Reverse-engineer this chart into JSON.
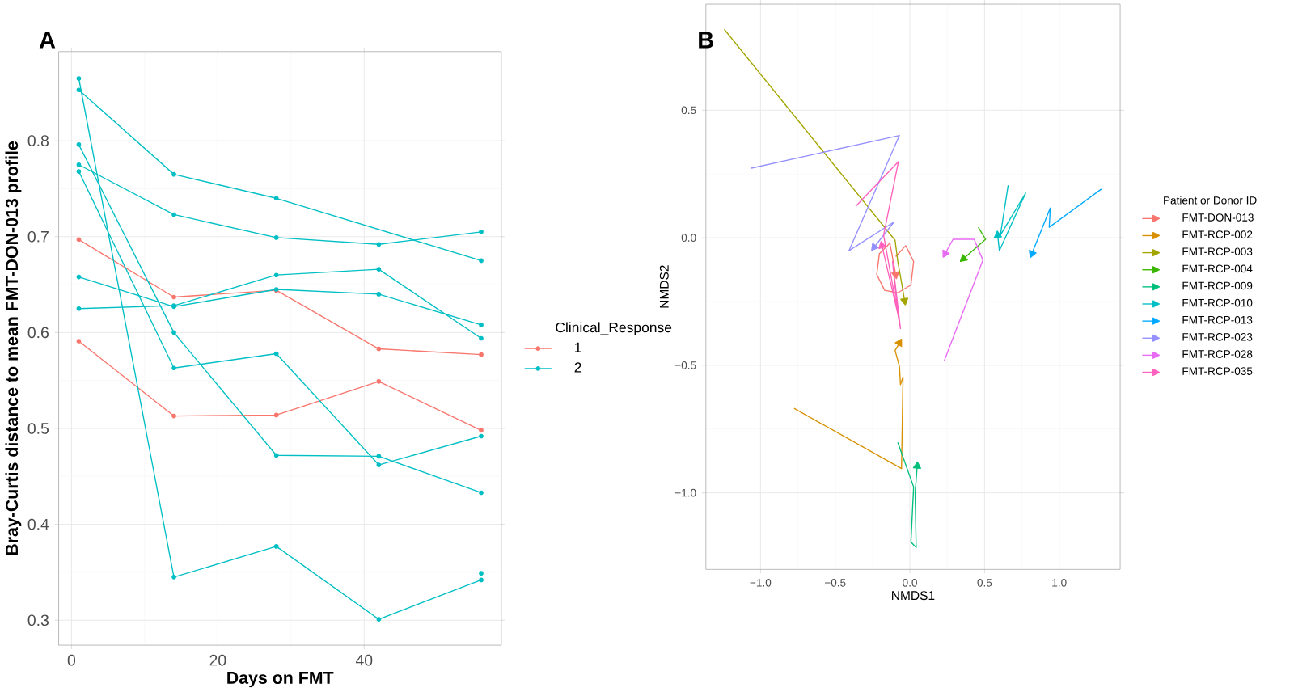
{
  "chart_data": [
    {
      "type": "line",
      "title": "A",
      "xlabel": "Days on FMT",
      "ylabel": "Bray-Curtis distance to mean FMT-DON-013 profile",
      "legend_title": "Clinical_Response",
      "legend": "right",
      "grid": true,
      "marker": "circle",
      "xlim": [
        -1.75,
        58.75
      ],
      "ylim": [
        0.274,
        0.893
      ],
      "xticks": [
        0,
        20,
        40
      ],
      "yticks": [
        0.3,
        0.4,
        0.5,
        0.6,
        0.7,
        0.8
      ],
      "x": [
        1,
        14,
        28,
        42,
        56
      ],
      "series": [
        {
          "name": "1",
          "color": "#f8766d",
          "values": [
            0.697,
            0.637,
            0.644,
            0.583,
            0.577
          ]
        },
        {
          "color": "#f8766d",
          "values": [
            0.591,
            0.513,
            0.514,
            0.549,
            0.498
          ]
        },
        {
          "name": "2",
          "color": "#00bfc4",
          "values": [
            0.865,
            0.345,
            0.377,
            0.301,
            0.342
          ]
        },
        {
          "color": "#00bfc4",
          "x": [
            1,
            14,
            28,
            56
          ],
          "values": [
            0.853,
            0.765,
            0.74,
            0.675
          ]
        },
        {
          "color": "#00bfc4",
          "values": [
            0.775,
            0.723,
            0.699,
            0.692,
            0.705
          ]
        },
        {
          "color": "#00bfc4",
          "values": [
            0.796,
            0.6,
            0.472,
            0.471,
            0.433
          ]
        },
        {
          "color": "#00bfc4",
          "values": [
            0.768,
            0.563,
            0.578,
            0.462,
            0.492
          ]
        },
        {
          "color": "#00bfc4",
          "values": [
            0.658,
            0.627,
            0.645,
            0.64,
            0.608
          ]
        },
        {
          "color": "#00bfc4",
          "values": [
            0.625,
            0.628,
            0.66,
            0.666,
            0.594
          ]
        },
        {
          "type": "scatter",
          "color": "#00bfc4",
          "x": [
            56
          ],
          "values": [
            0.349
          ]
        }
      ]
    },
    {
      "type": "line",
      "title": "B",
      "xlabel": "NMDS1",
      "ylabel": "NMDS2",
      "legend_title": "Patient or Donor ID",
      "legend": "right",
      "grid": true,
      "marker": "none",
      "xlim": [
        -1.366,
        1.408
      ],
      "ylim": [
        -1.3,
        0.916
      ],
      "xticks": [
        {
          "value": -1.0,
          "label": "−1.0"
        },
        {
          "value": -0.5,
          "label": "−0.5"
        },
        {
          "value": 0,
          "label": "0.0"
        },
        0.5,
        {
          "value": 1.0,
          "label": "1.0"
        }
      ],
      "yticks": [
        {
          "value": -1.0,
          "label": "−1.0"
        },
        {
          "value": -0.5,
          "label": "−0.5"
        },
        {
          "value": 0,
          "label": "0.0"
        },
        0.5
      ],
      "series": [
        {
          "name": "FMT-DON-013",
          "color": "#f8766d",
          "x": [
            -0.095,
            -0.028,
            0.025,
            0.007,
            -0.081,
            -0.169,
            -0.222,
            -0.204,
            -0.134,
            -0.095
          ],
          "values": [
            -0.074,
            -0.031,
            -0.093,
            -0.185,
            -0.216,
            -0.206,
            -0.144,
            -0.062,
            -0.021,
            -0.144
          ]
        },
        {
          "name": "FMT-RCP-002",
          "color": "#d89000",
          "x": [
            -0.775,
            -0.056,
            -0.046,
            -0.063,
            -0.07,
            -0.099,
            -0.07
          ],
          "values": [
            -0.669,
            -0.905,
            -0.545,
            -0.576,
            -0.504,
            -0.442,
            -0.412
          ]
        },
        {
          "name": "FMT-RCP-003",
          "color": "#a3a500",
          "x": [
            -1.243,
            -0.099,
            -0.081,
            -0.056,
            -0.035
          ],
          "values": [
            0.817,
            -0.01,
            -0.093,
            -0.175,
            -0.247
          ]
        },
        {
          "name": "FMT-RCP-004",
          "color": "#39b600",
          "x": [
            0.458,
            0.507,
            0.359
          ],
          "values": [
            0.041,
            -0.006,
            -0.082
          ]
        },
        {
          "name": "FMT-RCP-009",
          "color": "#00bf7d",
          "x": [
            -0.081,
            0.025,
            0.007,
            0.042,
            0.035,
            0.049
          ],
          "values": [
            -0.802,
            -0.977,
            -1.193,
            -1.214,
            -1.0,
            -0.895
          ]
        },
        {
          "name": "FMT-RCP-010",
          "color": "#00bfc4",
          "x": [
            0.658,
            0.606,
            0.775,
            0.599,
            0.588
          ],
          "values": [
            0.206,
            0.01,
            0.175,
            -0.051,
            0.01
          ]
        },
        {
          "name": "FMT-RCP-013",
          "color": "#00a9ff",
          "x": [
            1.282,
            0.933,
            0.94,
            0.817
          ],
          "values": [
            0.191,
            0.041,
            0.117,
            -0.062
          ]
        },
        {
          "name": "FMT-RCP-023",
          "color": "#9590ff",
          "x": [
            -1.067,
            -0.07,
            -0.408,
            -0.106,
            -0.239
          ],
          "values": [
            0.272,
            0.401,
            -0.051,
            0.062,
            -0.037
          ]
        },
        {
          "name": "FMT-RCP-028",
          "color": "#e76bf3",
          "x": [
            0.229,
            0.489,
            0.43,
            0.289,
            0.236
          ],
          "values": [
            -0.484,
            -0.088,
            -0.006,
            -0.006,
            -0.062
          ]
        },
        {
          "name": "FMT-RCP-035",
          "color": "#ff62bc",
          "x": [
            -0.363,
            -0.077,
            -0.176,
            -0.063,
            -0.116,
            -0.081,
            -0.187
          ],
          "values": [
            0.123,
            0.298,
            0.01,
            -0.356,
            -0.093,
            -0.298,
            -0.031
          ]
        }
      ]
    }
  ]
}
